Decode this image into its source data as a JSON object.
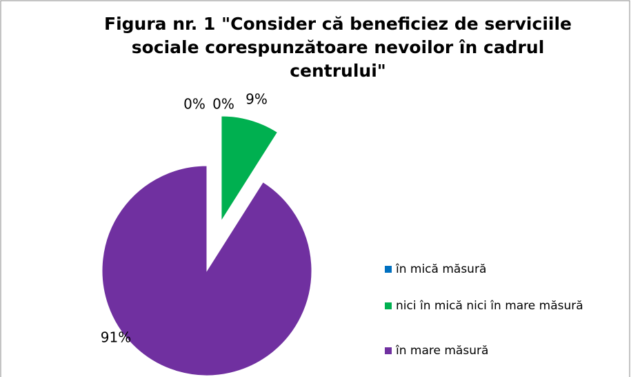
{
  "chart_data": {
    "type": "pie",
    "title": "Figura nr. 1 \"Consider că beneficiez de serviciile sociale corespunzătoare nevoilor în cadrul centrului\"",
    "categories": [
      "în mică măsură",
      null,
      "nici în mică nici în mare măsură",
      "în mare măsură"
    ],
    "values": [
      0,
      0,
      9,
      91
    ],
    "value_labels": [
      "0%",
      "0%",
      "9%",
      "91%"
    ],
    "colors": [
      "#0070c0",
      null,
      "#00b050",
      "#7030a0"
    ],
    "legend": "right"
  }
}
